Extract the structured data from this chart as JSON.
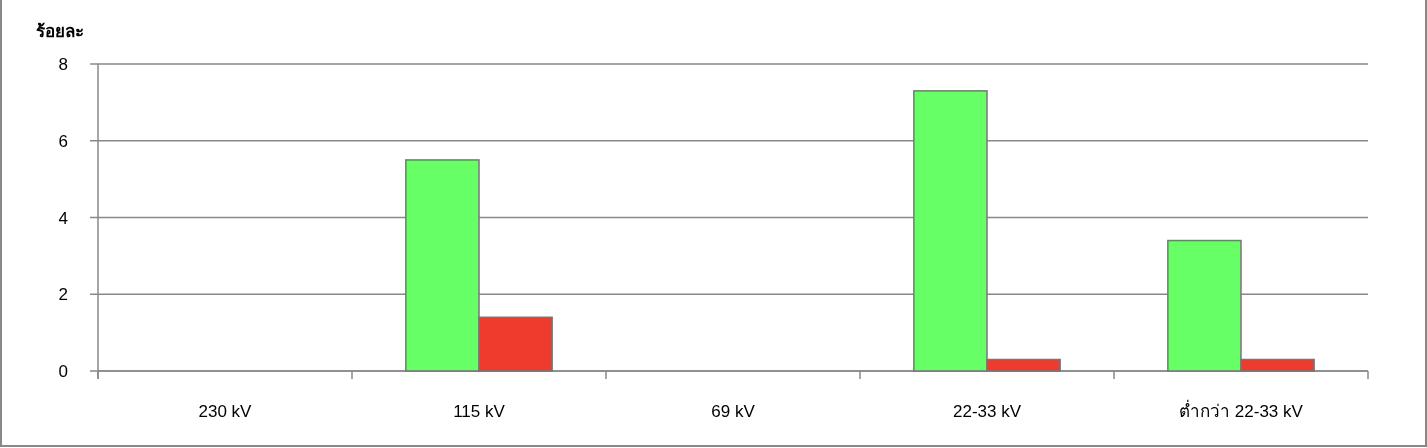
{
  "chart_data": {
    "type": "bar",
    "ylabel": "ร้อยละ",
    "categories": [
      "230 kV",
      "115 kV",
      "69 kV",
      "22-33 kV",
      "ต่ำกว่า 22-33 kV"
    ],
    "series": [
      {
        "color": "#66ff66",
        "values": [
          null,
          5.5,
          null,
          7.3,
          3.4
        ]
      },
      {
        "color": "#ee3b2e",
        "values": [
          null,
          1.4,
          null,
          0.3,
          0.3
        ]
      }
    ],
    "ylim": [
      0,
      8
    ],
    "yticks": [
      0,
      2,
      4,
      6,
      8
    ],
    "grid": "y"
  }
}
